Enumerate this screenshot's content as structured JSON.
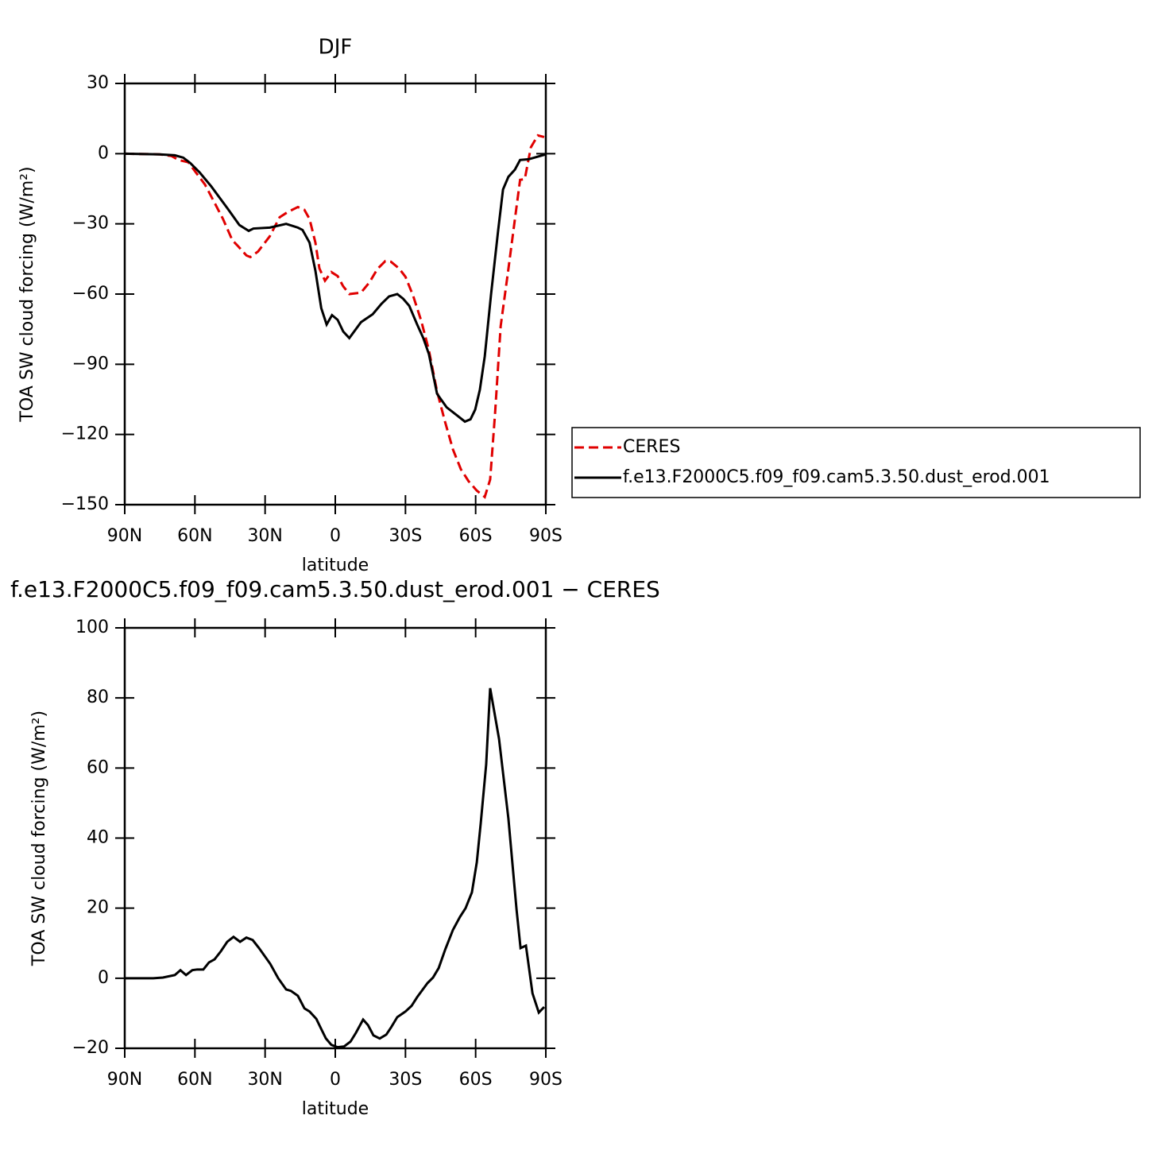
{
  "chart_data": [
    {
      "type": "line",
      "title": "DJF",
      "xlabel": "latitude",
      "ylabel": "TOA SW cloud forcing (W/m²)",
      "xlim": [
        90,
        -90
      ],
      "xticks": [
        {
          "value": 90,
          "label": "90N"
        },
        {
          "value": 60,
          "label": "60N"
        },
        {
          "value": 30,
          "label": "30N"
        },
        0,
        {
          "value": -30,
          "label": "30S"
        },
        {
          "value": -60,
          "label": "60S"
        },
        {
          "value": -90,
          "label": "90S"
        }
      ],
      "ylim": [
        -150,
        30
      ],
      "yticks": [
        30,
        0,
        {
          "value": -30,
          "label": "−30"
        },
        {
          "value": -60,
          "label": "−60"
        },
        {
          "value": -90,
          "label": "−90"
        },
        {
          "value": -120,
          "label": "−120"
        },
        {
          "value": -150,
          "label": "−150"
        }
      ],
      "legend": "right",
      "series": [
        {
          "name": "CERES",
          "color": "#e00000",
          "style": "dashed",
          "x": [
            90,
            75,
            70,
            67,
            62.8,
            60,
            55.7,
            51.6,
            48,
            44,
            41.4,
            38,
            36.3,
            33,
            28,
            23.8,
            20.4,
            16,
            13.2,
            11,
            8.5,
            6.8,
            4.4,
            1.7,
            -1,
            -3.4,
            -6,
            -11,
            -14.6,
            -18,
            -21.4,
            -23.8,
            -27.2,
            -30,
            -33.3,
            -36.7,
            -40,
            -43.5,
            -46.9,
            -50.3,
            -53.7,
            -57,
            -60.5,
            -63.9,
            -66.2,
            -68.3,
            -70.7,
            -74,
            -76.8,
            -79,
            -81,
            -83.6,
            -86.6,
            -89.3
          ],
          "values": [
            0,
            -0.3,
            -1,
            -2.7,
            -3.7,
            -7.5,
            -13.2,
            -21,
            -27.9,
            -37,
            -39.7,
            -43.5,
            -44.2,
            -41.8,
            -35.3,
            -27.2,
            -25,
            -22.8,
            -24,
            -27.9,
            -38,
            -49,
            -54.3,
            -50.6,
            -52.3,
            -56.7,
            -60,
            -59.4,
            -55,
            -49.3,
            -45.9,
            -46.2,
            -49,
            -52.6,
            -60.8,
            -71.3,
            -83.9,
            -101.6,
            -114.5,
            -126.4,
            -134.9,
            -140,
            -144,
            -146.7,
            -139.3,
            -111,
            -73.7,
            -49.3,
            -27.9,
            -11.2,
            -10.9,
            2.7,
            7.8,
            7.1
          ]
        },
        {
          "name": "f.e13.F2000C5.f09_f09.cam5.3.50.dust_erod.001",
          "color": "#000000",
          "style": "solid",
          "x": [
            90,
            75,
            68.6,
            65,
            62,
            58,
            53,
            46,
            41,
            37,
            35,
            28,
            21,
            16,
            14,
            11,
            8.5,
            6,
            3.7,
            1.4,
            -1,
            -3.4,
            -6,
            -11,
            -16,
            -19.7,
            -23,
            -26.5,
            -29,
            -31.6,
            -35,
            -37.7,
            -40,
            -43.5,
            -47.6,
            -52,
            -55.4,
            -57.8,
            -59.8,
            -61.8,
            -63.9,
            -66.6,
            -69.6,
            -71.7,
            -74,
            -76.8,
            -79,
            -82.6,
            -90
          ],
          "values": [
            0,
            -0.3,
            -0.7,
            -1.7,
            -4,
            -8,
            -14,
            -23.5,
            -30.5,
            -33,
            -32,
            -31.6,
            -30,
            -31.6,
            -32.6,
            -38,
            -50,
            -66,
            -73,
            -69,
            -71,
            -76,
            -78.8,
            -72,
            -68.6,
            -64.2,
            -61,
            -60,
            -62,
            -65,
            -73,
            -79,
            -85.6,
            -102.6,
            -108.4,
            -111.8,
            -114.5,
            -113.5,
            -109.4,
            -100.9,
            -86.6,
            -60,
            -33,
            -15.3,
            -9.9,
            -6.8,
            -2.7,
            -2.4,
            -0.3
          ]
        }
      ]
    },
    {
      "type": "line",
      "title": "f.e13.F2000C5.f09_f09.cam5.3.50.dust_erod.001 − CERES",
      "xlabel": "latitude",
      "ylabel": "TOA SW cloud forcing (W/m²)",
      "xlim": [
        90,
        -90
      ],
      "xticks": [
        {
          "value": 90,
          "label": "90N"
        },
        {
          "value": 60,
          "label": "60N"
        },
        {
          "value": 30,
          "label": "30N"
        },
        0,
        {
          "value": -30,
          "label": "30S"
        },
        {
          "value": -60,
          "label": "60S"
        },
        {
          "value": -90,
          "label": "90S"
        }
      ],
      "ylim": [
        -20,
        100
      ],
      "yticks": [
        100,
        80,
        60,
        40,
        20,
        0,
        {
          "value": -20,
          "label": "−20"
        }
      ],
      "color": "#000000",
      "x": [
        90,
        77.8,
        73.7,
        68.6,
        66.2,
        63.8,
        61.1,
        59,
        56.4,
        54,
        51.6,
        48.9,
        46.2,
        43.5,
        40.7,
        38,
        35.3,
        32.6,
        27.8,
        24.4,
        21,
        19,
        16,
        13.2,
        11,
        8.1,
        6,
        4,
        1.7,
        -1,
        -3.7,
        -6.5,
        -8.8,
        -11.9,
        -14,
        -16.3,
        -19,
        -21.8,
        -23.8,
        -26.5,
        -30,
        -32.6,
        -35,
        -39.4,
        -41.8,
        -44.2,
        -47,
        -50.3,
        -53.3,
        -55.7,
        -58.4,
        -60.5,
        -62.2,
        -64.5,
        -66.2,
        -70,
        -74,
        -77.5,
        -79.2,
        -81.5,
        -84.3,
        -87,
        -89.3
      ],
      "values": [
        0,
        0,
        0.2,
        0.9,
        2.3,
        0.9,
        2.3,
        2.5,
        2.5,
        4.5,
        5.4,
        7.7,
        10.4,
        11.8,
        10.4,
        11.6,
        10.9,
        8.6,
        4.1,
        0,
        -3.2,
        -3.6,
        -5,
        -8.6,
        -9.5,
        -11.6,
        -14.5,
        -17.2,
        -19,
        -19.7,
        -19.5,
        -18.1,
        -15.6,
        -11.8,
        -13.4,
        -16.3,
        -17.2,
        -16.1,
        -14.1,
        -11.1,
        -9.5,
        -7.9,
        -5.4,
        -1.4,
        0.2,
        2.9,
        8.2,
        13.8,
        17.5,
        20,
        24.5,
        33.1,
        44.4,
        61,
        82.8,
        68.3,
        45.6,
        19.5,
        8.6,
        9.3,
        -4.3,
        -9.8,
        -8.2
      ]
    }
  ]
}
